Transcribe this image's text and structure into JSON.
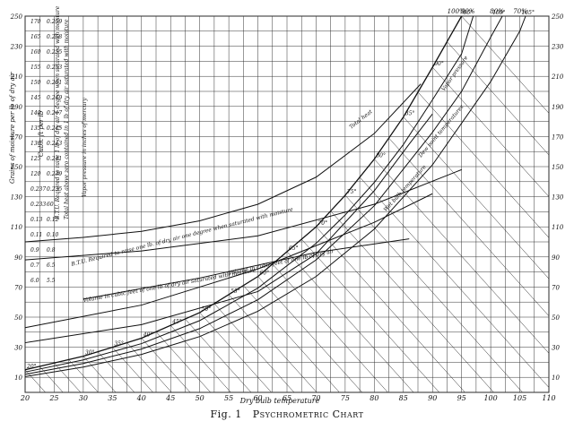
{
  "chart_data": {
    "type": "line",
    "title": "Psychrometric Chart",
    "figure_label": "Fig. 1",
    "xlabel": "Dry bulb temperature",
    "x_ticks": [
      20,
      25,
      30,
      35,
      40,
      45,
      50,
      55,
      60,
      65,
      70,
      75,
      80,
      85,
      90,
      95,
      100,
      105,
      110
    ],
    "xlim": [
      20,
      110
    ],
    "y_ticks": [
      10,
      30,
      50,
      70,
      90,
      110,
      130,
      150,
      170,
      190,
      210,
      230,
      250
    ],
    "ylim": [
      0,
      250
    ],
    "ylabel": "Grains of moisture per lb of dry air",
    "grid": true,
    "left_scales": [
      {
        "label": "Grains of moisture per lb of dry air"
      },
      {
        "label": "Cubic ft per lb"
      },
      {
        "label": "B.T.U. Required to raise 1 lb of dry air 1 degree when saturated with moisture"
      },
      {
        "label": "Total heat above zero contained in 1 lb of dry air saturated with moisture"
      },
      {
        "label": "Vapor pressure in inches of mercury"
      }
    ],
    "left_scale_values": [
      "170",
      "0.259",
      "165",
      "0.258",
      "160",
      "0.255",
      "155",
      "0.253",
      "150",
      "0.251",
      "145",
      "0.249",
      "140",
      "0.247",
      "135",
      "0.245",
      "130",
      "0.243",
      "125",
      "0.241",
      "120",
      "0.239",
      "0.237",
      "0.235",
      "0.233",
      "60",
      "0.13",
      "0.12",
      "0.11",
      "0.10",
      "0.9",
      "0.8",
      "0.7",
      "6.5",
      "6.0",
      "5.5"
    ],
    "curve_labels": [
      "Total heat",
      "Vapor pressure",
      "Dew point temperatures",
      "B.T.U. Required to raise one lb. of dry air one degree when saturated with moisture",
      "Volume in cubic feet of one lb of dry air saturated with moisture",
      "Volume in cubic feet of one lb of dry air",
      "Wet bulb temperature",
      "10",
      "15",
      "20",
      "30",
      "35",
      "40",
      "45",
      "50",
      "55",
      "60",
      "65",
      "70",
      "75",
      "80",
      "85",
      "90",
      "95",
      "100",
      "105"
    ],
    "series": [
      {
        "name": "100%",
        "points": [
          [
            20,
            15
          ],
          [
            30,
            24
          ],
          [
            40,
            36
          ],
          [
            50,
            53
          ],
          [
            60,
            77
          ],
          [
            70,
            110
          ],
          [
            75,
            131
          ],
          [
            80,
            155
          ],
          [
            85,
            183
          ],
          [
            90,
            216
          ],
          [
            95,
            250
          ]
        ]
      },
      {
        "name": "90%",
        "points": [
          [
            20,
            13.5
          ],
          [
            30,
            21.6
          ],
          [
            40,
            32.4
          ],
          [
            50,
            47.7
          ],
          [
            60,
            69.3
          ],
          [
            70,
            99
          ],
          [
            75,
            117.9
          ],
          [
            80,
            139.5
          ],
          [
            85,
            164.7
          ],
          [
            90,
            194.4
          ],
          [
            95,
            225
          ],
          [
            97,
            250
          ]
        ]
      },
      {
        "name": "80%",
        "points": [
          [
            20,
            12
          ],
          [
            30,
            19.2
          ],
          [
            40,
            28.8
          ],
          [
            50,
            42.4
          ],
          [
            60,
            61.6
          ],
          [
            70,
            88
          ],
          [
            80,
            124
          ],
          [
            90,
            172.8
          ],
          [
            95,
            200
          ],
          [
            100,
            236
          ],
          [
            102,
            250
          ]
        ]
      },
      {
        "name": "70%",
        "points": [
          [
            20,
            10.5
          ],
          [
            30,
            16.8
          ],
          [
            40,
            25.2
          ],
          [
            50,
            37.1
          ],
          [
            60,
            53.9
          ],
          [
            70,
            77
          ],
          [
            80,
            108.5
          ],
          [
            90,
            151.2
          ],
          [
            100,
            206.5
          ],
          [
            105,
            240
          ],
          [
            106,
            250
          ]
        ]
      },
      {
        "name": "Total heat",
        "points": [
          [
            20,
            100
          ],
          [
            30,
            103
          ],
          [
            40,
            107
          ],
          [
            50,
            114
          ],
          [
            60,
            125
          ],
          [
            70,
            143
          ],
          [
            80,
            172
          ],
          [
            88,
            205
          ]
        ]
      },
      {
        "name": "Volume in cubic feet of one lb of dry air saturated with moisture",
        "points": [
          [
            20,
            43
          ],
          [
            40,
            58
          ],
          [
            60,
            82
          ],
          [
            80,
            113
          ],
          [
            90,
            132
          ]
        ]
      },
      {
        "name": "B.T.U. Required to raise one lb. of dry air one degree when saturated with moisture",
        "points": [
          [
            20,
            88
          ],
          [
            40,
            94
          ],
          [
            60,
            104
          ],
          [
            80,
            125
          ],
          [
            95,
            148
          ]
        ]
      },
      {
        "name": "Vapor pressure",
        "points": [
          [
            20,
            33
          ],
          [
            40,
            45
          ],
          [
            60,
            67
          ],
          [
            70,
            92
          ],
          [
            80,
            134
          ],
          [
            86,
            165
          ],
          [
            90,
            185
          ]
        ]
      },
      {
        "name": "Volume in cubic feet of one lb of dry air",
        "points": [
          [
            30,
            62
          ],
          [
            50,
            76
          ],
          [
            70,
            93
          ],
          [
            86,
            102
          ]
        ]
      }
    ]
  }
}
